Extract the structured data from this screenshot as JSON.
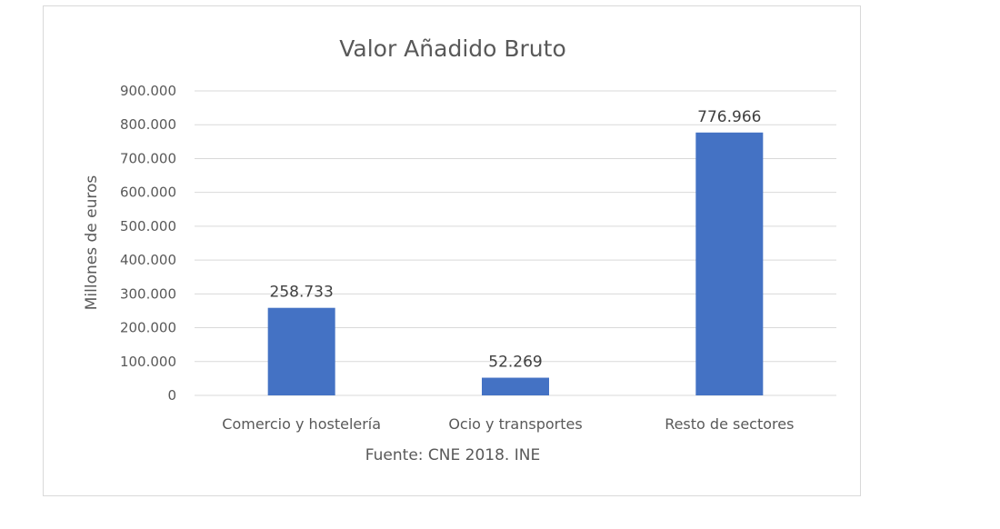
{
  "chart_data": {
    "type": "bar",
    "title": "Valor Añadido Bruto",
    "ylabel": "Millones de euros",
    "xlabel": "",
    "caption": "Fuente: CNE 2018. INE",
    "categories": [
      "Comercio y hostelería",
      "Ocio y transportes",
      "Resto de sectores"
    ],
    "values": [
      258733,
      52269,
      776966
    ],
    "data_labels": [
      "258.733",
      "52.269",
      "776.966"
    ],
    "ylim": [
      0,
      900000
    ],
    "yticks": [
      0,
      100000,
      200000,
      300000,
      400000,
      500000,
      600000,
      700000,
      800000,
      900000
    ],
    "ytick_labels": [
      "0",
      "100.000",
      "200.000",
      "300.000",
      "400.000",
      "500.000",
      "600.000",
      "700.000",
      "800.000",
      "900.000"
    ],
    "grid": true,
    "legend": "none",
    "colors": {
      "bar": "#4472c4",
      "grid": "#d9d9d9",
      "text": "#595959"
    }
  }
}
